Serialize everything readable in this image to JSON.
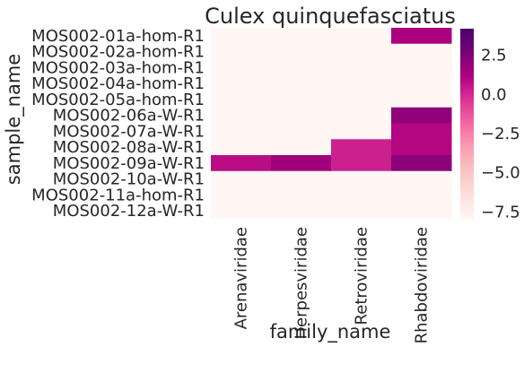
{
  "chart_data": {
    "type": "heatmap",
    "title": "Culex quinquefasciatus",
    "xlabel": "family_name",
    "ylabel": "sample_name",
    "x_categories": [
      "Arenaviridae",
      "Herpesviridae",
      "Retroviridae",
      "Rhabdoviridae"
    ],
    "y_categories": [
      "MOS002-01a-hom-R1",
      "MOS002-02a-hom-R1",
      "MOS002-03a-hom-R1",
      "MOS002-04a-hom-R1",
      "MOS002-05a-hom-R1",
      "MOS002-06a-W-R1",
      "MOS002-07a-W-R1",
      "MOS002-08a-W-R1",
      "MOS002-09a-W-R1",
      "MOS002-10a-W-R1",
      "MOS002-11a-hom-R1",
      "MOS002-12a-W-R1"
    ],
    "values": [
      [
        -8.0,
        -8.0,
        -8.0,
        1.2
      ],
      [
        -8.0,
        -8.0,
        -8.0,
        -8.0
      ],
      [
        -8.0,
        -8.0,
        -8.0,
        -8.0
      ],
      [
        -8.0,
        -8.0,
        -8.0,
        -8.0
      ],
      [
        -8.0,
        -8.0,
        -8.0,
        -8.0
      ],
      [
        -8.0,
        -8.0,
        -8.0,
        2.0
      ],
      [
        -8.0,
        -8.0,
        -8.0,
        1.0
      ],
      [
        -8.0,
        -8.0,
        0.2,
        1.0
      ],
      [
        0.8,
        1.6,
        0.2,
        2.2
      ],
      [
        -8.0,
        -8.0,
        -8.0,
        -8.0
      ],
      [
        -8.0,
        -8.0,
        -8.0,
        -8.0
      ],
      [
        -8.0,
        -8.0,
        -8.0,
        -8.0
      ]
    ],
    "colormap": "RdPu",
    "colorbar": {
      "min": -8.0,
      "max": 4.2,
      "ticks": [
        2.5,
        0.0,
        -2.5,
        -5.0,
        -7.5
      ],
      "tick_labels": [
        "2.5",
        "0.0",
        "−2.5",
        "−5.0",
        "−7.5"
      ]
    },
    "grid": false,
    "legend": "colorbar-right"
  }
}
